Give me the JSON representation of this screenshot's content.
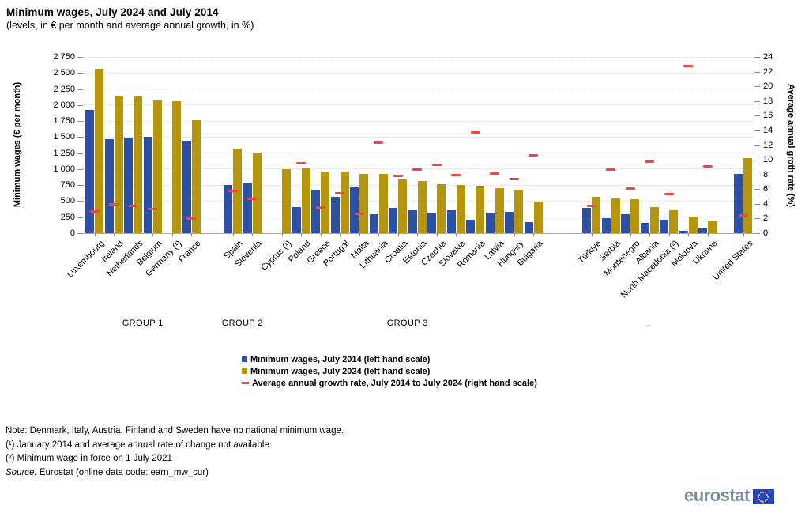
{
  "header": {
    "title": "Minimum wages, July 2024 and July 2014",
    "subtitle": "(levels, in € per month and average annual growth, in %)"
  },
  "chart_data": {
    "type": "bar",
    "title": "Minimum wages, July 2024 and July 2014",
    "subtitle": "(levels, in € per month and average annual growth, in %)",
    "grid": true,
    "legend_position": "bottom-center",
    "left_axis": {
      "label": "Minimum wages (€ per month)",
      "min": 0,
      "max": 2750,
      "step": 250,
      "tick_labels": [
        "0",
        "250",
        "500",
        "750",
        "1 000",
        "1 250",
        "1 500",
        "1 750",
        "2 000",
        "2 250",
        "2 500",
        "2 750"
      ]
    },
    "right_axis": {
      "label": "Average annual groth rate (%)",
      "min": 0,
      "max": 24,
      "step": 2,
      "tick_labels": [
        "0",
        "2",
        "4",
        "6",
        "8",
        "10",
        "12",
        "14",
        "16",
        "18",
        "20",
        "22",
        "24"
      ]
    },
    "series": [
      {
        "name": "Minimum wages, July 2014 (left hand scale)",
        "type": "bar",
        "color": "#2d4fa5"
      },
      {
        "name": "Minimum wages, July 2024 (left hand scale)",
        "type": "bar",
        "color": "#b6950e"
      },
      {
        "name": "Average annual growth rate, July 2014 to July 2024 (right hand scale)",
        "type": "dash",
        "color": "#ed4742"
      }
    ],
    "groups": [
      {
        "label": "GROUP 1",
        "countries": [
          {
            "name": "Luxembourg",
            "mw_2014": 1921,
            "mw_2024": 2571,
            "growth": 3.0
          },
          {
            "name": "Ireland",
            "mw_2014": 1462,
            "mw_2024": 2146,
            "growth": 3.9
          },
          {
            "name": "Netherlands",
            "mw_2014": 1486,
            "mw_2024": 2134,
            "growth": 3.7
          },
          {
            "name": "Belgium",
            "mw_2014": 1502,
            "mw_2024": 2070,
            "growth": 3.3
          },
          {
            "name": "Germany (¹)",
            "mw_2014": null,
            "mw_2024": 2054,
            "growth": null
          },
          {
            "name": "France",
            "mw_2014": 1445,
            "mw_2024": 1767,
            "growth": 2.0
          }
        ]
      },
      {
        "label": "GROUP 2",
        "countries": [
          {
            "name": "Spain",
            "mw_2014": 753,
            "mw_2024": 1323,
            "growth": 5.8
          },
          {
            "name": "Slovenia",
            "mw_2014": 789,
            "mw_2024": 1254,
            "growth": 4.7
          }
        ]
      },
      {
        "label": "GROUP 3",
        "countries": [
          {
            "name": "Cyprus (¹)",
            "mw_2014": null,
            "mw_2024": 1000,
            "growth": null
          },
          {
            "name": "Poland",
            "mw_2014": 404,
            "mw_2024": 1010,
            "growth": 9.5
          },
          {
            "name": "Greece",
            "mw_2014": 684,
            "mw_2024": 968,
            "growth": 3.5
          },
          {
            "name": "Portugal",
            "mw_2014": 566,
            "mw_2024": 957,
            "growth": 5.4
          },
          {
            "name": "Malta",
            "mw_2014": 718,
            "mw_2024": 925,
            "growth": 2.6
          },
          {
            "name": "Lithuania",
            "mw_2014": 290,
            "mw_2024": 924,
            "growth": 12.3
          },
          {
            "name": "Croatia",
            "mw_2014": 396,
            "mw_2024": 840,
            "growth": 7.8
          },
          {
            "name": "Estonia",
            "mw_2014": 355,
            "mw_2024": 820,
            "growth": 8.7
          },
          {
            "name": "Czechia",
            "mw_2014": 312,
            "mw_2024": 764,
            "growth": 9.3
          },
          {
            "name": "Slovakia",
            "mw_2014": 352,
            "mw_2024": 750,
            "growth": 7.9
          },
          {
            "name": "Romania",
            "mw_2014": 205,
            "mw_2024": 743,
            "growth": 13.7
          },
          {
            "name": "Latvia",
            "mw_2014": 320,
            "mw_2024": 700,
            "growth": 8.1
          },
          {
            "name": "Hungary",
            "mw_2014": 332,
            "mw_2024": 680,
            "growth": 7.4
          },
          {
            "name": "Bulgaria",
            "mw_2014": 174,
            "mw_2024": 477,
            "growth": 10.6
          }
        ]
      },
      {
        "label": ".",
        "countries": [
          {
            "name": "Türkiye",
            "mw_2014": 400,
            "mw_2024": 570,
            "growth": 3.7
          },
          {
            "name": "Serbia",
            "mw_2014": 240,
            "mw_2024": 545,
            "growth": 8.7
          },
          {
            "name": "Montenegro",
            "mw_2014": 290,
            "mw_2024": 535,
            "growth": 6.1
          },
          {
            "name": "Albania",
            "mw_2014": 156,
            "mw_2024": 406,
            "growth": 9.7
          },
          {
            "name": "North Macedonia (²)",
            "mw_2014": 215,
            "mw_2024": 360,
            "growth": 5.3
          },
          {
            "name": "Moldova",
            "mw_2014": 33,
            "mw_2024": 255,
            "growth": 22.8
          },
          {
            "name": "Ukraine",
            "mw_2014": 78,
            "mw_2024": 190,
            "growth": 9.1
          }
        ]
      },
      {
        "label": "",
        "countries": [
          {
            "name": "United States",
            "mw_2014": 920,
            "mw_2024": 1170,
            "growth": 2.4
          }
        ]
      }
    ]
  },
  "notes": {
    "note": "Note: Denmark, Italy, Austria, Finland and Sweden have no national minimum wage.",
    "footnote1": "(¹) January 2014 and average annual rate of change not available.",
    "footnote2": "(²) Minimum wage in force on 1 July 2021",
    "source_label": "Source:",
    "source_rest": " Eurostat (online data code: earn_mw_cur)"
  },
  "logo": {
    "text": "eurostat"
  },
  "colors": {
    "bar_2014": "#2d4fa5",
    "bar_2024": "#b6950e",
    "growth_dash": "#ed4742",
    "gridline": "#d6d6d6",
    "axis": "#a8a8a8",
    "logo_text": "#7d8b99",
    "flag_blue": "#2346c6",
    "flag_stars": "#ffcc00"
  }
}
